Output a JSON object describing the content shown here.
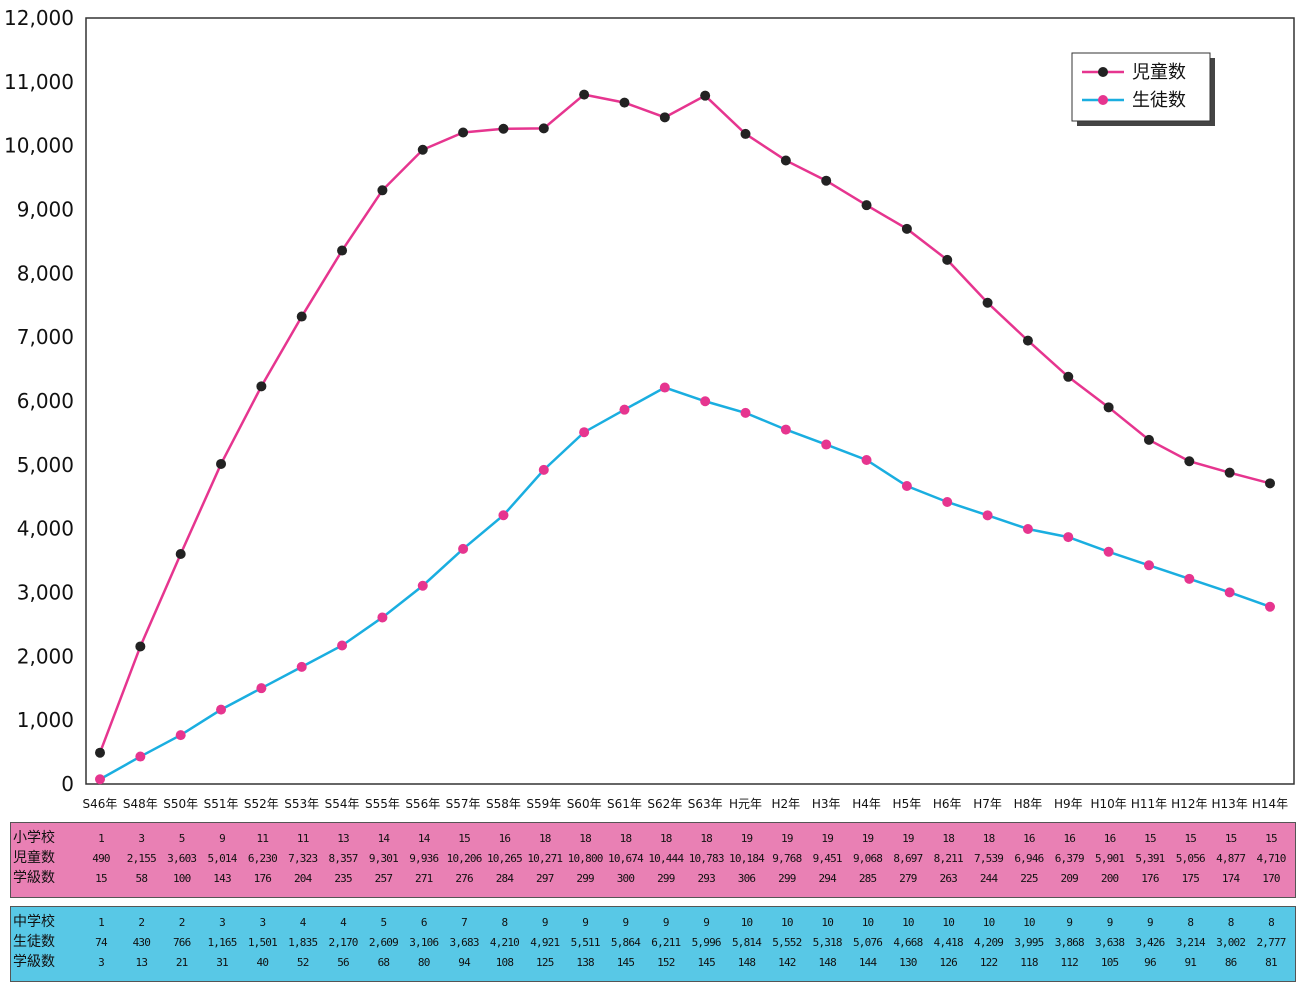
{
  "chart_data": {
    "type": "line",
    "categories": [
      "S46年",
      "S48年",
      "S50年",
      "S51年",
      "S52年",
      "S53年",
      "S54年",
      "S55年",
      "S56年",
      "S57年",
      "S58年",
      "S59年",
      "S60年",
      "S61年",
      "S62年",
      "S63年",
      "H元年",
      "H2年",
      "H3年",
      "H4年",
      "H5年",
      "H6年",
      "H7年",
      "H8年",
      "H9年",
      "H10年",
      "H11年",
      "H12年",
      "H13年",
      "H14年"
    ],
    "ylim": [
      0,
      12000
    ],
    "yticks": [
      "0",
      "1,000",
      "2,000",
      "3,000",
      "4,000",
      "5,000",
      "6,000",
      "7,000",
      "8,000",
      "9,000",
      "10,000",
      "11,000",
      "12,000"
    ],
    "legend_position": "top-right",
    "series": [
      {
        "name": "児童数",
        "color": "#e6358f",
        "marker_color": "#222222",
        "values": [
          490,
          2155,
          3603,
          5014,
          6230,
          7323,
          8357,
          9301,
          9936,
          10206,
          10265,
          10271,
          10800,
          10674,
          10444,
          10783,
          10184,
          9768,
          9451,
          9068,
          8697,
          8211,
          7539,
          6946,
          6379,
          5901,
          5391,
          5056,
          4877,
          4710
        ]
      },
      {
        "name": "生徒数",
        "color": "#1aaee0",
        "marker_color": "#e6358f",
        "values": [
          74,
          430,
          766,
          1165,
          1501,
          1835,
          2170,
          2609,
          3106,
          3683,
          4210,
          4921,
          5511,
          5864,
          6211,
          5996,
          5814,
          5552,
          5318,
          5076,
          4668,
          4418,
          4209,
          3995,
          3868,
          3638,
          3426,
          3214,
          3002,
          2777
        ]
      }
    ]
  },
  "tables": {
    "elementary": {
      "color": "#e980b4",
      "rows": [
        {
          "label": "小学校",
          "values": [
            "1",
            "3",
            "5",
            "9",
            "11",
            "11",
            "13",
            "14",
            "14",
            "15",
            "16",
            "18",
            "18",
            "18",
            "18",
            "18",
            "19",
            "19",
            "19",
            "19",
            "19",
            "18",
            "18",
            "16",
            "16",
            "16",
            "15",
            "15",
            "15",
            "15"
          ]
        },
        {
          "label": "児童数",
          "values": [
            "490",
            "2,155",
            "3,603",
            "5,014",
            "6,230",
            "7,323",
            "8,357",
            "9,301",
            "9,936",
            "10,206",
            "10,265",
            "10,271",
            "10,800",
            "10,674",
            "10,444",
            "10,783",
            "10,184",
            "9,768",
            "9,451",
            "9,068",
            "8,697",
            "8,211",
            "7,539",
            "6,946",
            "6,379",
            "5,901",
            "5,391",
            "5,056",
            "4,877",
            "4,710"
          ]
        },
        {
          "label": "学級数",
          "values": [
            "15",
            "58",
            "100",
            "143",
            "176",
            "204",
            "235",
            "257",
            "271",
            "276",
            "284",
            "297",
            "299",
            "300",
            "299",
            "293",
            "306",
            "299",
            "294",
            "285",
            "279",
            "263",
            "244",
            "225",
            "209",
            "200",
            "176",
            "175",
            "174",
            "170"
          ]
        }
      ]
    },
    "junior": {
      "color": "#58c8e6",
      "rows": [
        {
          "label": "中学校",
          "values": [
            "1",
            "2",
            "2",
            "3",
            "3",
            "4",
            "4",
            "5",
            "6",
            "7",
            "8",
            "9",
            "9",
            "9",
            "9",
            "9",
            "10",
            "10",
            "10",
            "10",
            "10",
            "10",
            "10",
            "10",
            "9",
            "9",
            "9",
            "8",
            "8",
            "8"
          ]
        },
        {
          "label": "生徒数",
          "values": [
            "74",
            "430",
            "766",
            "1,165",
            "1,501",
            "1,835",
            "2,170",
            "2,609",
            "3,106",
            "3,683",
            "4,210",
            "4,921",
            "5,511",
            "5,864",
            "6,211",
            "5,996",
            "5,814",
            "5,552",
            "5,318",
            "5,076",
            "4,668",
            "4,418",
            "4,209",
            "3,995",
            "3,868",
            "3,638",
            "3,426",
            "3,214",
            "3,002",
            "2,777"
          ]
        },
        {
          "label": "学級数",
          "values": [
            "3",
            "13",
            "21",
            "31",
            "40",
            "52",
            "56",
            "68",
            "80",
            "94",
            "108",
            "125",
            "138",
            "145",
            "152",
            "145",
            "148",
            "142",
            "148",
            "144",
            "130",
            "126",
            "122",
            "118",
            "112",
            "105",
            "96",
            "91",
            "86",
            "81"
          ]
        }
      ]
    }
  }
}
